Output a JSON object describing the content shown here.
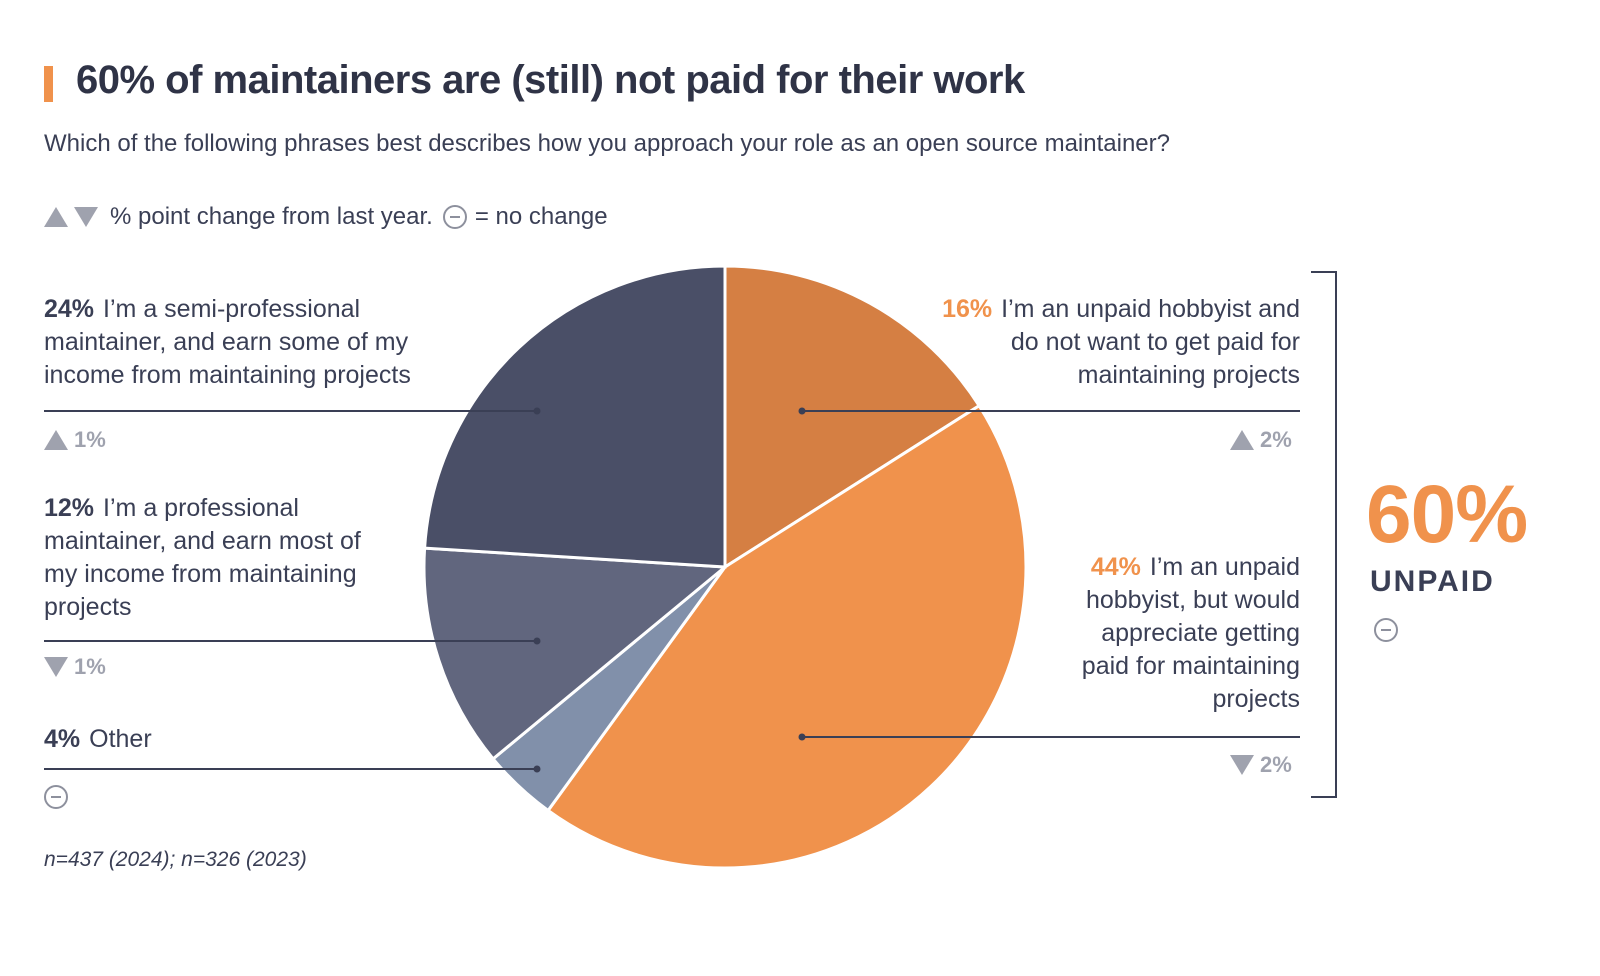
{
  "title": "60% of maintainers are (still) not paid for their work",
  "subtitle": "Which of the following phrases best describes how you approach your role as an open source maintainer?",
  "legend": {
    "change_text": "% point change from last year.",
    "no_change_text": "= no change"
  },
  "colors": {
    "accent_orange": "#f0924c",
    "dark_orange": "#d57f43",
    "navy": "#4a4f67",
    "slate": "#61667e",
    "steel": "#8190aa",
    "text": "#3a3f55"
  },
  "chart_data": {
    "type": "pie",
    "slices": [
      {
        "label": "I’m an unpaid hobbyist and do not want to get paid for maintaining projects",
        "value": 16,
        "pct_label": "16%",
        "change": "2%",
        "change_direction": "up",
        "color": "#d57f43"
      },
      {
        "label": "I’m an unpaid hobbyist, but would appreciate getting paid for maintaining projects",
        "value": 44,
        "pct_label": "44%",
        "change": "2%",
        "change_direction": "down",
        "color": "#f0924c"
      },
      {
        "label": "Other",
        "value": 4,
        "pct_label": "4%",
        "change": "",
        "change_direction": "none",
        "color": "#8190aa"
      },
      {
        "label": "I’m a professional maintainer, and earn most of my income from maintaining projects",
        "value": 12,
        "pct_label": "12%",
        "change": "1%",
        "change_direction": "down",
        "color": "#61667e"
      },
      {
        "label": "I’m a semi-professional maintainer, and earn some of my income from maintaining projects",
        "value": 24,
        "pct_label": "24%",
        "change": "1%",
        "change_direction": "up",
        "color": "#4a4f67"
      }
    ],
    "group": {
      "value": "60%",
      "label": "UNPAID",
      "change_direction": "none"
    }
  },
  "footnote": "n=437 (2024); n=326 (2023)"
}
